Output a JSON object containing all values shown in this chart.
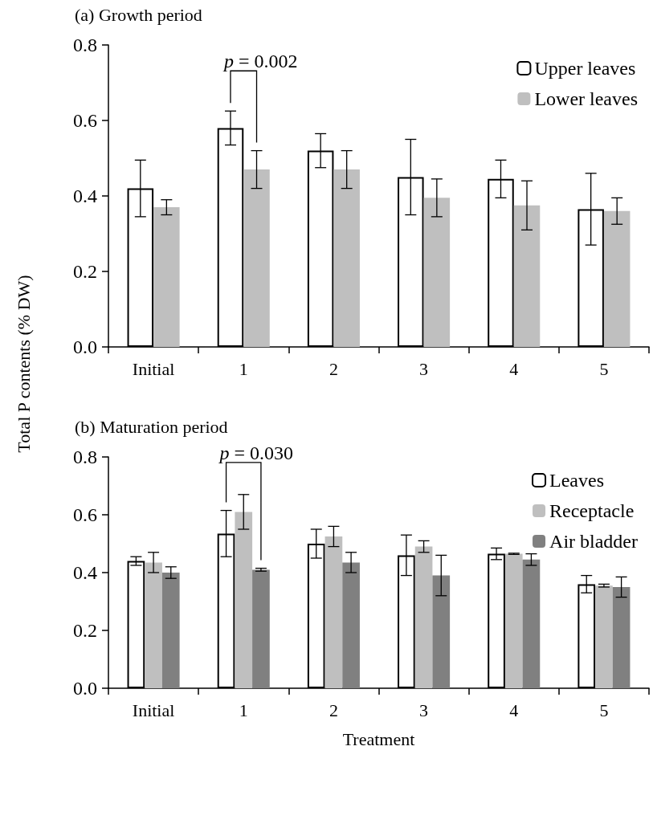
{
  "chart_data": [
    {
      "type": "bar",
      "title": "(a) Growth period",
      "ylabel": "Total P contents (% DW)",
      "categories": [
        "Initial",
        "1",
        "2",
        "3",
        "4",
        "5"
      ],
      "series": [
        {
          "name": "Upper leaves",
          "color": "#ffffff",
          "values": [
            0.42,
            0.58,
            0.52,
            0.45,
            0.445,
            0.365
          ],
          "errors": [
            0.075,
            0.045,
            0.045,
            0.1,
            0.05,
            0.095
          ]
        },
        {
          "name": "Lower leaves",
          "color": "#bfbfbf",
          "values": [
            0.37,
            0.47,
            0.47,
            0.395,
            0.375,
            0.36
          ],
          "errors": [
            0.02,
            0.05,
            0.05,
            0.05,
            0.065,
            0.035
          ]
        }
      ],
      "ylim": [
        0,
        0.8
      ],
      "yticks": [
        {
          "value": 0,
          "label": "0.0"
        },
        {
          "value": 0.2,
          "label": "0.2"
        },
        {
          "value": 0.4,
          "label": "0.4"
        },
        {
          "value": 0.6,
          "label": "0.6"
        },
        {
          "value": 0.8,
          "label": "0.8"
        }
      ],
      "grid": false,
      "legend": "top right",
      "annotations": [
        "p = 0.002"
      ]
    },
    {
      "type": "bar",
      "title": "(b) Maturation period",
      "xlabel": "Treatment",
      "categories": [
        "Initial",
        "1",
        "2",
        "3",
        "4",
        "5"
      ],
      "series": [
        {
          "name": "Leaves",
          "color": "#ffffff",
          "values": [
            0.44,
            0.535,
            0.5,
            0.46,
            0.465,
            0.36
          ],
          "errors": [
            0.015,
            0.08,
            0.05,
            0.07,
            0.02,
            0.03
          ]
        },
        {
          "name": "Receptacle",
          "color": "#bfbfbf",
          "values": [
            0.435,
            0.61,
            0.525,
            0.49,
            0.465,
            0.355
          ],
          "errors": [
            0.035,
            0.06,
            0.035,
            0.02,
            0.002,
            0.005
          ]
        },
        {
          "name": "Air bladder",
          "color": "#808080",
          "values": [
            0.4,
            0.41,
            0.435,
            0.39,
            0.445,
            0.35
          ],
          "errors": [
            0.02,
            0.005,
            0.035,
            0.07,
            0.02,
            0.035
          ]
        }
      ],
      "ylim": [
        0,
        0.8
      ],
      "yticks": [
        {
          "value": 0,
          "label": "0.0"
        },
        {
          "value": 0.2,
          "label": "0.2"
        },
        {
          "value": 0.4,
          "label": "0.4"
        },
        {
          "value": 0.6,
          "label": "0.6"
        },
        {
          "value": 0.8,
          "label": "0.8"
        }
      ],
      "grid": false,
      "legend": "top right",
      "annotations": [
        "p = 0.030"
      ]
    }
  ]
}
